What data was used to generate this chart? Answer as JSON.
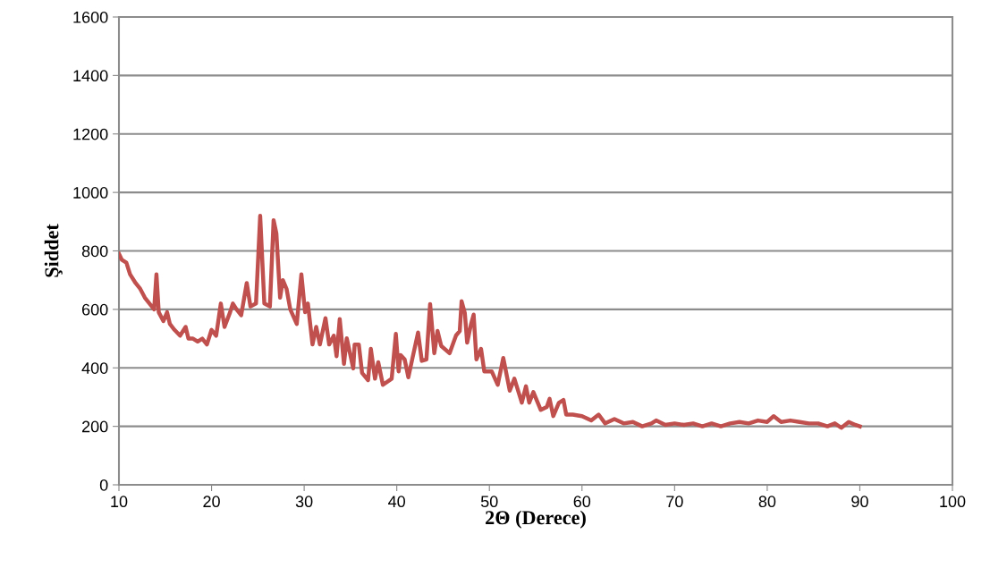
{
  "chart_data": {
    "type": "line",
    "xlabel": "2Θ (Derece)",
    "ylabel": "Şiddet",
    "xlim": [
      10,
      100
    ],
    "xticks": [
      10,
      20,
      30,
      40,
      50,
      60,
      70,
      80,
      90,
      100
    ],
    "ylim": [
      0,
      1600
    ],
    "yticks": [
      0,
      200,
      400,
      600,
      800,
      1000,
      1200,
      1400,
      1600
    ],
    "grid": "y",
    "marker": "none",
    "line_style": "solid",
    "series": [
      {
        "color": "#c0504d",
        "x": [
          10,
          10.3,
          10.8,
          11.2,
          11.8,
          12.3,
          12.8,
          13.3,
          13.8,
          14.05,
          14.3,
          14.8,
          15.2,
          15.5,
          16,
          16.6,
          17.2,
          17.5,
          18,
          18.5,
          19,
          19.5,
          20,
          20.5,
          21,
          21.4,
          22,
          22.3,
          22.7,
          23.2,
          23.8,
          24.2,
          24.8,
          25.25,
          25.7,
          26.3,
          26.7,
          27.0,
          27.4,
          27.7,
          28.1,
          28.5,
          29.2,
          29.7,
          30.1,
          30.4,
          30.9,
          31.3,
          31.7,
          32.3,
          32.7,
          33.2,
          33.5,
          33.84,
          34.3,
          34.6,
          35.3,
          35.45,
          35.9,
          36.25,
          36.9,
          37.2,
          37.65,
          38.0,
          38.5,
          39.45,
          39.9,
          40.2,
          40.4,
          40.85,
          41.25,
          41.7,
          42.3,
          42.7,
          43.2,
          43.6,
          44.05,
          44.4,
          44.8,
          45.7,
          46.4,
          46.8,
          47.0,
          47.35,
          47.6,
          48.0,
          48.3,
          48.6,
          49.1,
          49.45,
          50.25,
          50.9,
          51.5,
          52.2,
          52.7,
          53.5,
          53.95,
          54.3,
          54.75,
          55.55,
          56.2,
          56.5,
          56.9,
          57.5,
          58,
          58.3,
          59,
          60,
          61,
          61.8,
          62.5,
          63.5,
          64.5,
          65.5,
          66.5,
          67.5,
          68,
          69,
          70,
          71,
          72,
          73,
          74,
          75,
          76,
          77,
          78,
          79,
          80,
          80.7,
          81.5,
          82.5,
          83.5,
          84.5,
          85.5,
          86.5,
          87.3,
          88,
          88.8,
          89.5,
          90
        ],
        "values": [
          790,
          770,
          760,
          720,
          690,
          670,
          640,
          620,
          600,
          720,
          590,
          560,
          590,
          550,
          530,
          510,
          540,
          500,
          500,
          490,
          500,
          480,
          530,
          510,
          620,
          540,
          590,
          620,
          600,
          580,
          690,
          610,
          620,
          920,
          620,
          610,
          905,
          860,
          640,
          700,
          670,
          600,
          550,
          720,
          590,
          620,
          480,
          540,
          480,
          570,
          480,
          510,
          440,
          567,
          414,
          501,
          398,
          480,
          480,
          383,
          358,
          465,
          363,
          419,
          342,
          363,
          516,
          388,
          444,
          429,
          368,
          434,
          521,
          424,
          429,
          618,
          450,
          526,
          475,
          450,
          511,
          526,
          628,
          587,
          486,
          547,
          582,
          429,
          465,
          388,
          388,
          342,
          434,
          322,
          363,
          281,
          337,
          281,
          317,
          256,
          266,
          294,
          235,
          280,
          290,
          240,
          240,
          235,
          220,
          240,
          210,
          225,
          210,
          215,
          200,
          210,
          220,
          205,
          210,
          205,
          210,
          200,
          210,
          200,
          210,
          215,
          210,
          220,
          215,
          235,
          215,
          220,
          215,
          210,
          210,
          200,
          210,
          195,
          215,
          205,
          200
        ]
      }
    ]
  }
}
